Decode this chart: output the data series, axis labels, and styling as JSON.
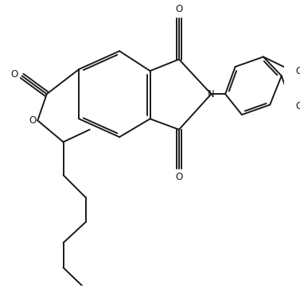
{
  "line_color": "#1a1a1a",
  "background_color": "#ffffff",
  "line_width": 1.4,
  "figsize": [
    3.77,
    3.62
  ],
  "dpi": 100,
  "xlim": [
    0,
    10
  ],
  "ylim": [
    0,
    10
  ],
  "font_size": 8.5
}
